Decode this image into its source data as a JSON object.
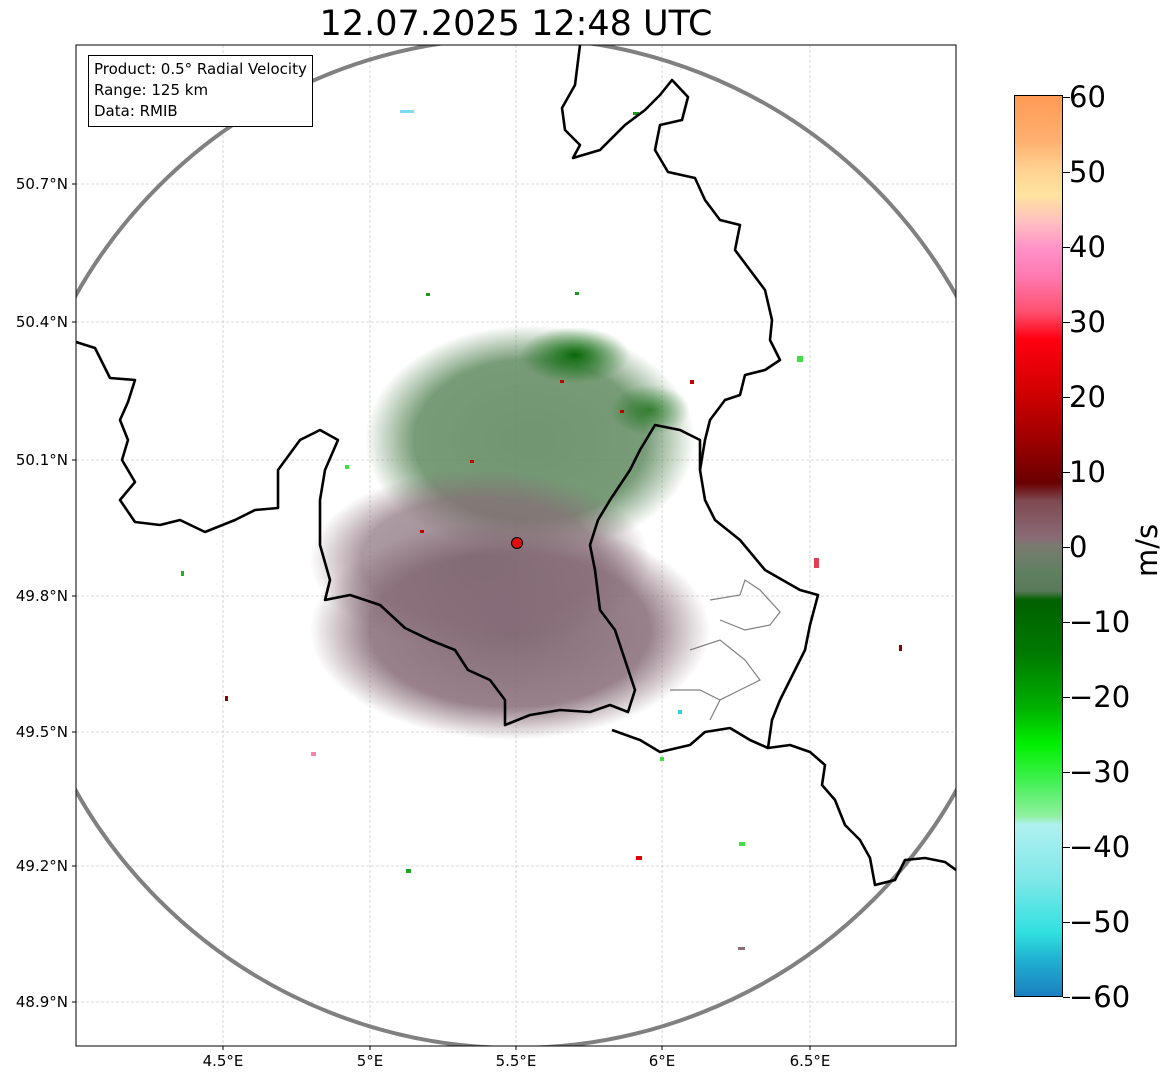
{
  "title": "12.07.2025 12:48 UTC",
  "info": {
    "product": "Product: 0.5° Radial Velocity",
    "range": "Range: 125 km",
    "source": "Data: RMIB"
  },
  "lat_labels": [
    "50.7°N",
    "50.4°N",
    "50.1°N",
    "49.8°N",
    "49.5°N",
    "49.2°N",
    "48.9°N"
  ],
  "lon_labels": [
    "4.5°E",
    "5°E",
    "5.5°E",
    "6°E",
    "6.5°E"
  ],
  "colorbar": {
    "unit": "m/s",
    "ticks": [
      "60",
      "50",
      "40",
      "30",
      "20",
      "10",
      "0",
      "−10",
      "−20",
      "−30",
      "−40",
      "−50",
      "−60"
    ],
    "range": [
      -60,
      60
    ]
  },
  "colors": {
    "border": "#000000",
    "range_ring": "#808080",
    "radar_site": "#e01010",
    "inbound_green": "#5f8f5f",
    "outbound_mauve": "#8a6f78"
  }
}
